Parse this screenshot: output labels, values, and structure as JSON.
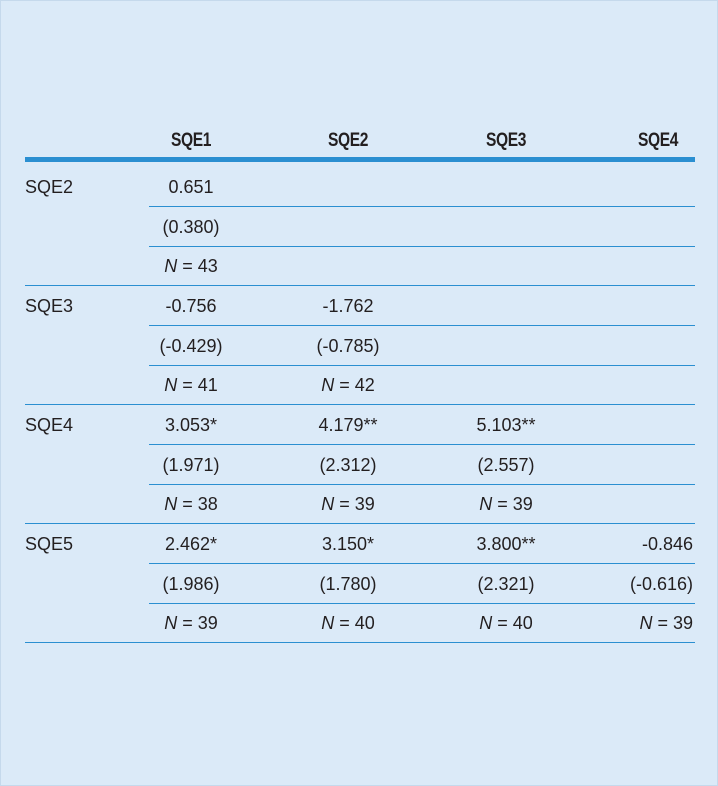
{
  "header": {
    "columns": [
      "SQE1",
      "SQE2",
      "SQE3",
      "SQE4"
    ]
  },
  "table": {
    "groups": [
      {
        "label": "SQE2",
        "rows": [
          [
            "0.651"
          ],
          [
            "(0.380)"
          ],
          [
            "N = 43"
          ]
        ]
      },
      {
        "label": "SQE3",
        "rows": [
          [
            "-0.756",
            "-1.762"
          ],
          [
            "(-0.429)",
            "(-0.785)"
          ],
          [
            "N = 41",
            "N = 42"
          ]
        ]
      },
      {
        "label": "SQE4",
        "rows": [
          [
            "3.053*",
            "4.179**",
            "5.103**"
          ],
          [
            "(1.971)",
            "(2.312)",
            "(2.557)"
          ],
          [
            "N = 38",
            "N = 39",
            "N = 39"
          ]
        ]
      },
      {
        "label": "SQE5",
        "rows": [
          [
            "2.462*",
            "3.150*",
            "3.800**",
            "-0.846"
          ],
          [
            "(1.986)",
            "(1.780)",
            "(2.321)",
            "(-0.616)"
          ],
          [
            "N = 39",
            "N = 40",
            "N = 40",
            "N = 39"
          ]
        ]
      }
    ]
  }
}
